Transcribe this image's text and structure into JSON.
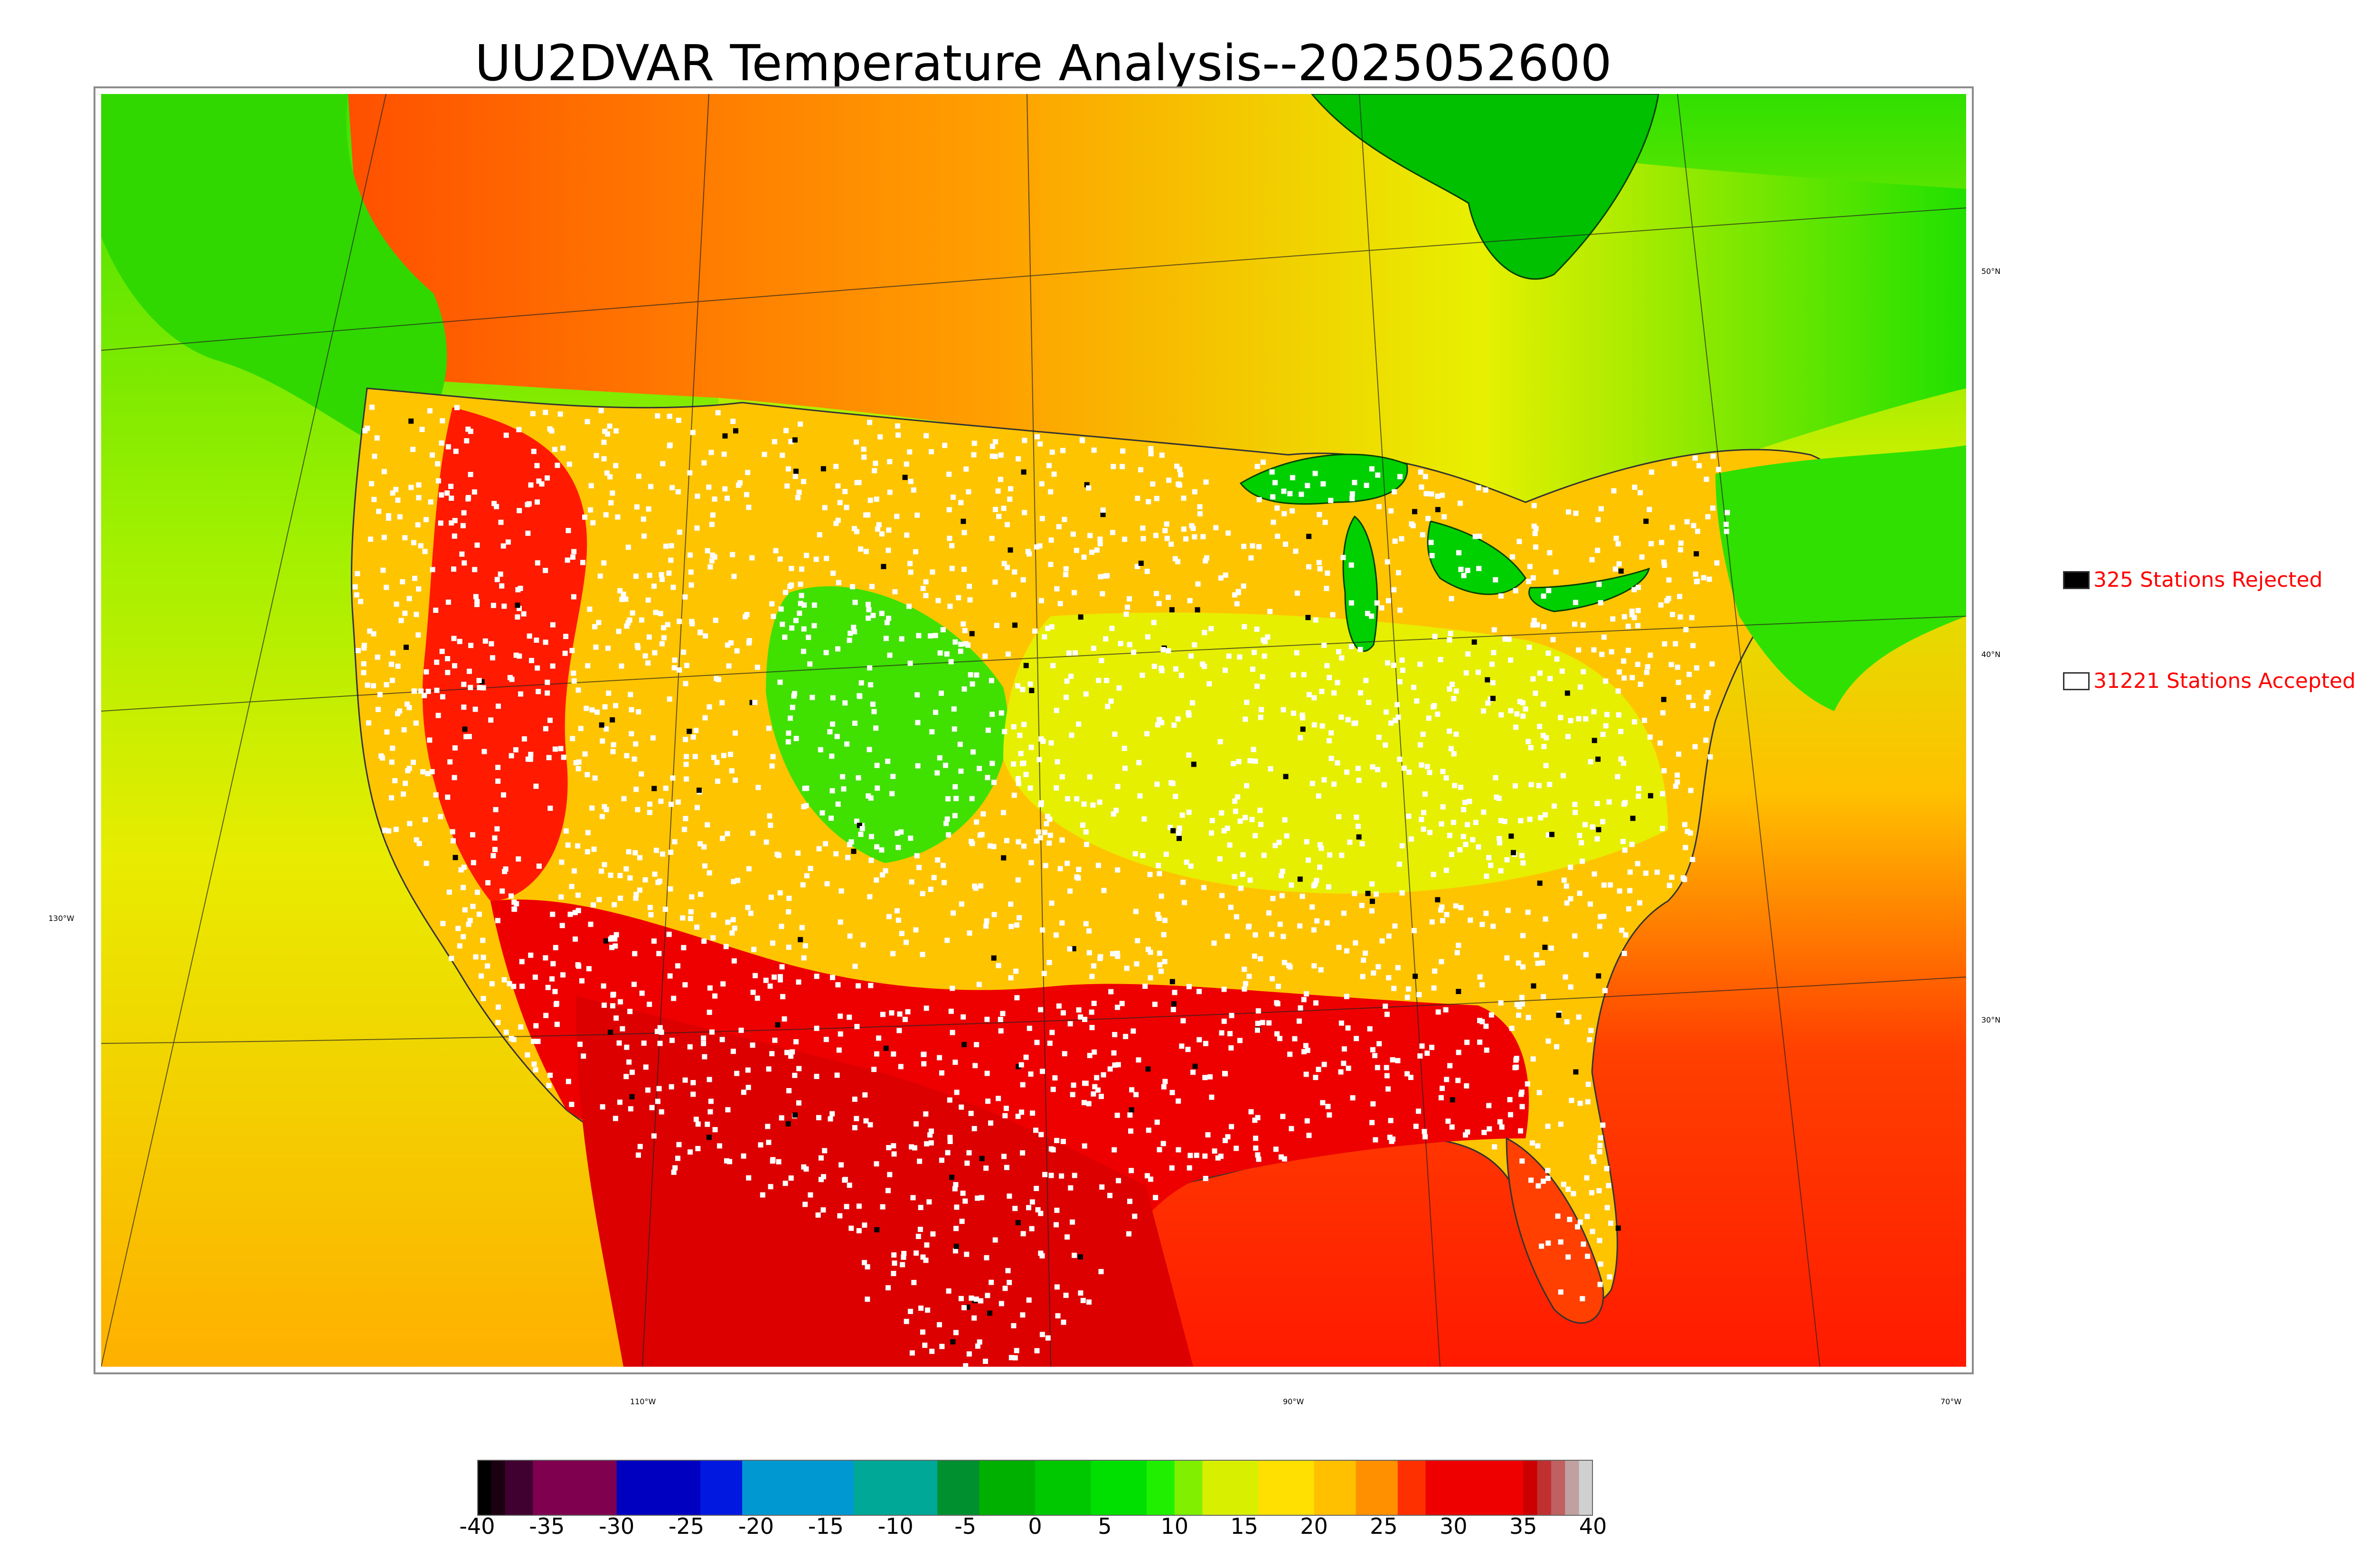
{
  "title": "UU2DVAR Temperature Analysis--2025052600",
  "map": {
    "lat_labels": [
      "50°N",
      "40°N",
      "30°N"
    ],
    "lon_labels": [
      "130°W",
      "110°W",
      "90°W",
      "70°W"
    ],
    "colors": {
      "cold": "#00c800",
      "cool": "#4cf000",
      "mild": "#e5f000",
      "warm": "#ffc000",
      "hot": "#ff8000",
      "very_hot": "#ff1a00",
      "extreme": "#d40000",
      "water": "#e8e800",
      "station_accepted": "#ffffff",
      "station_rejected": "#000000"
    }
  },
  "legend": {
    "rejected": {
      "label": "325 Stations Rejected",
      "color": "#000000"
    },
    "accepted": {
      "label": "31221 Stations Accepted",
      "color": "#ffffff"
    }
  },
  "colorbar": {
    "min": -40,
    "max": 40,
    "tick_labels": [
      "-40",
      "-35",
      "-30",
      "-25",
      "-20",
      "-15",
      "-10",
      "-5",
      "0",
      "5",
      "10",
      "15",
      "20",
      "25",
      "30",
      "35",
      "40"
    ],
    "stops": [
      {
        "from": -40,
        "to": -39,
        "color": "#000000"
      },
      {
        "from": -39,
        "to": -38,
        "color": "#1a0010"
      },
      {
        "from": -38,
        "to": -36,
        "color": "#400030"
      },
      {
        "from": -36,
        "to": -30,
        "color": "#800050"
      },
      {
        "from": -30,
        "to": -24,
        "color": "#0000c0"
      },
      {
        "from": -24,
        "to": -21,
        "color": "#0018e0"
      },
      {
        "from": -21,
        "to": -13,
        "color": "#0098d0"
      },
      {
        "from": -13,
        "to": -7,
        "color": "#00a898"
      },
      {
        "from": -7,
        "to": -4,
        "color": "#009030"
      },
      {
        "from": -4,
        "to": 0,
        "color": "#00b000"
      },
      {
        "from": 0,
        "to": 4,
        "color": "#00c800"
      },
      {
        "from": 4,
        "to": 8,
        "color": "#00e000"
      },
      {
        "from": 8,
        "to": 10,
        "color": "#20f000"
      },
      {
        "from": 10,
        "to": 12,
        "color": "#80f000"
      },
      {
        "from": 12,
        "to": 16,
        "color": "#d8f000"
      },
      {
        "from": 16,
        "to": 20,
        "color": "#ffe000"
      },
      {
        "from": 20,
        "to": 23,
        "color": "#ffc000"
      },
      {
        "from": 23,
        "to": 26,
        "color": "#ff9000"
      },
      {
        "from": 26,
        "to": 28,
        "color": "#ff3000"
      },
      {
        "from": 28,
        "to": 35,
        "color": "#ee0000"
      },
      {
        "from": 35,
        "to": 36,
        "color": "#cc0000"
      },
      {
        "from": 36,
        "to": 37,
        "color": "#c03030"
      },
      {
        "from": 37,
        "to": 38,
        "color": "#c06060"
      },
      {
        "from": 38,
        "to": 39,
        "color": "#c0a0a0"
      },
      {
        "from": 39,
        "to": 40,
        "color": "#d0d0d0"
      }
    ]
  }
}
